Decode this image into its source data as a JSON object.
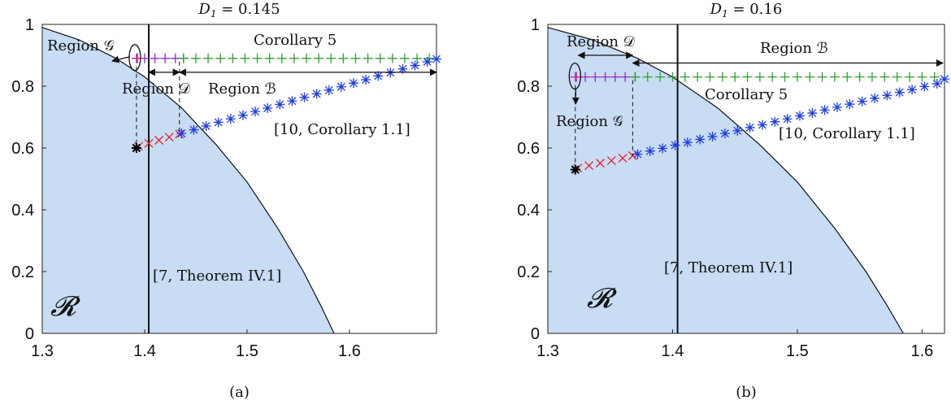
{
  "chart_data": [
    {
      "type": "scatter",
      "panel": "(a)",
      "title": "D_1 = 0.145",
      "title_main": "D",
      "title_sub": "1",
      "title_rest": " = 0.145",
      "caption": "(a)",
      "xlim": [
        1.3,
        1.685
      ],
      "ylim": [
        0,
        1
      ],
      "xticks": [
        "1.3",
        "1.4",
        "1.5",
        "1.6"
      ],
      "xtick_values": [
        1.3,
        1.4,
        1.5,
        1.6
      ],
      "yticks": [
        "0",
        "0.2",
        "0.4",
        "0.6",
        "0.8",
        "1"
      ],
      "ytick_values": [
        0,
        0.2,
        0.4,
        0.6,
        0.8,
        1
      ],
      "region_boundary": {
        "x": [
          1.3,
          1.336,
          1.372,
          1.4,
          1.436,
          1.47,
          1.5,
          1.53,
          1.555,
          1.572,
          1.585
        ],
        "y": [
          0.99,
          0.95,
          0.89,
          0.83,
          0.73,
          0.61,
          0.49,
          0.34,
          0.2,
          0.09,
          0
        ]
      },
      "vertical_line_x": 1.404,
      "point_star": {
        "x": 1.392,
        "y": 0.6
      },
      "series": [
        {
          "color": "#8b2fc9",
          "marker": "+",
          "x": [
            1.392,
            1.4,
            1.41,
            1.42,
            1.43,
            1.438
          ],
          "y": [
            0.89,
            0.89,
            0.89,
            0.89,
            0.89,
            0.89
          ]
        },
        {
          "color": "#e0208a",
          "marker": "+",
          "x": [
            1.393
          ],
          "y": [
            0.89
          ]
        },
        {
          "color": "#2ca02c",
          "marker": "+",
          "x": [
            1.438,
            1.45,
            1.462,
            1.474,
            1.486,
            1.498,
            1.51,
            1.522,
            1.534,
            1.546,
            1.558,
            1.57,
            1.582,
            1.594,
            1.606,
            1.618,
            1.63,
            1.642,
            1.654,
            1.666,
            1.678
          ],
          "y": [
            0.89,
            0.89,
            0.89,
            0.89,
            0.89,
            0.89,
            0.89,
            0.89,
            0.89,
            0.89,
            0.89,
            0.89,
            0.89,
            0.89,
            0.89,
            0.89,
            0.89,
            0.89,
            0.89,
            0.89,
            0.89
          ]
        },
        {
          "color": "#e8202a",
          "marker": "x",
          "x": [
            1.394,
            1.404,
            1.414,
            1.424,
            1.434
          ],
          "y": [
            0.605,
            0.615,
            0.625,
            0.635,
            0.645
          ]
        },
        {
          "color": "#1f3fe0",
          "marker": "*",
          "x": [
            1.436,
            1.448,
            1.46,
            1.472,
            1.484,
            1.496,
            1.508,
            1.52,
            1.532,
            1.544,
            1.556,
            1.568,
            1.58,
            1.592,
            1.604,
            1.616,
            1.628,
            1.64,
            1.652,
            1.664,
            1.676,
            1.685
          ],
          "y": [
            0.647,
            0.659,
            0.671,
            0.683,
            0.694,
            0.706,
            0.718,
            0.729,
            0.741,
            0.752,
            0.764,
            0.775,
            0.787,
            0.798,
            0.81,
            0.821,
            0.833,
            0.844,
            0.856,
            0.867,
            0.879,
            0.888
          ]
        }
      ],
      "labels": {
        "region_g": "Region 𝒢",
        "region_d": "Region 𝒟",
        "region_b": "Region ℬ",
        "corollary5": "Corollary 5",
        "ref10": "[10, Corollary 1.1]",
        "ref7": "[7, Theorem IV.1]",
        "R": "𝓡"
      }
    },
    {
      "type": "scatter",
      "panel": "(b)",
      "title": "D_1 = 0.16",
      "title_main": "D",
      "title_sub": "1",
      "title_rest": " = 0.16",
      "caption": "(b)",
      "xlim": [
        1.3,
        1.618
      ],
      "ylim": [
        0,
        1
      ],
      "xticks": [
        "1.3",
        "1.4",
        "1.5",
        "1.6"
      ],
      "xtick_values": [
        1.3,
        1.4,
        1.5,
        1.6
      ],
      "yticks": [
        "0",
        "0.2",
        "0.4",
        "0.6",
        "0.8",
        "1"
      ],
      "ytick_values": [
        0,
        0.2,
        0.4,
        0.6,
        0.8,
        1
      ],
      "region_boundary": {
        "x": [
          1.3,
          1.336,
          1.372,
          1.4,
          1.436,
          1.47,
          1.5,
          1.53,
          1.555,
          1.572,
          1.585
        ],
        "y": [
          0.99,
          0.95,
          0.89,
          0.83,
          0.73,
          0.61,
          0.49,
          0.34,
          0.2,
          0.09,
          0
        ]
      },
      "vertical_line_x": 1.404,
      "point_star": {
        "x": 1.322,
        "y": 0.53
      },
      "series": [
        {
          "color": "#8b2fc9",
          "marker": "+",
          "x": [
            1.322,
            1.33,
            1.338,
            1.346,
            1.354,
            1.362,
            1.37
          ],
          "y": [
            0.83,
            0.83,
            0.83,
            0.83,
            0.83,
            0.83,
            0.83
          ]
        },
        {
          "color": "#e0208a",
          "marker": "+",
          "x": [
            1.323
          ],
          "y": [
            0.83
          ]
        },
        {
          "color": "#2ca02c",
          "marker": "+",
          "x": [
            1.37,
            1.38,
            1.39,
            1.4,
            1.41,
            1.42,
            1.43,
            1.44,
            1.45,
            1.46,
            1.47,
            1.48,
            1.49,
            1.5,
            1.51,
            1.52,
            1.53,
            1.54,
            1.55,
            1.56,
            1.57,
            1.58,
            1.59,
            1.6,
            1.61
          ],
          "y": [
            0.83,
            0.83,
            0.83,
            0.83,
            0.83,
            0.83,
            0.83,
            0.83,
            0.83,
            0.83,
            0.83,
            0.83,
            0.83,
            0.83,
            0.83,
            0.83,
            0.83,
            0.83,
            0.83,
            0.83,
            0.83,
            0.83,
            0.83,
            0.83,
            0.83
          ]
        },
        {
          "color": "#e8202a",
          "marker": "x",
          "x": [
            1.324,
            1.333,
            1.342,
            1.351,
            1.36,
            1.368
          ],
          "y": [
            0.535,
            0.543,
            0.551,
            0.559,
            0.567,
            0.575
          ]
        },
        {
          "color": "#1f3fe0",
          "marker": "*",
          "x": [
            1.372,
            1.382,
            1.392,
            1.402,
            1.412,
            1.422,
            1.432,
            1.442,
            1.452,
            1.462,
            1.472,
            1.482,
            1.492,
            1.502,
            1.512,
            1.522,
            1.532,
            1.542,
            1.552,
            1.562,
            1.572,
            1.582,
            1.592,
            1.602,
            1.612,
            1.618
          ],
          "y": [
            0.58,
            0.59,
            0.599,
            0.609,
            0.618,
            0.628,
            0.637,
            0.647,
            0.656,
            0.666,
            0.675,
            0.685,
            0.694,
            0.704,
            0.713,
            0.723,
            0.732,
            0.742,
            0.751,
            0.761,
            0.77,
            0.78,
            0.789,
            0.799,
            0.808,
            0.823
          ]
        }
      ],
      "labels": {
        "region_g": "Region 𝒢",
        "region_d": "Region 𝒟",
        "region_b": "Region ℬ",
        "corollary5": "Corollary 5",
        "ref10": "[10, Corollary 1.1]",
        "ref7": "[7, Theorem IV.1]",
        "R": "𝓡"
      }
    }
  ]
}
